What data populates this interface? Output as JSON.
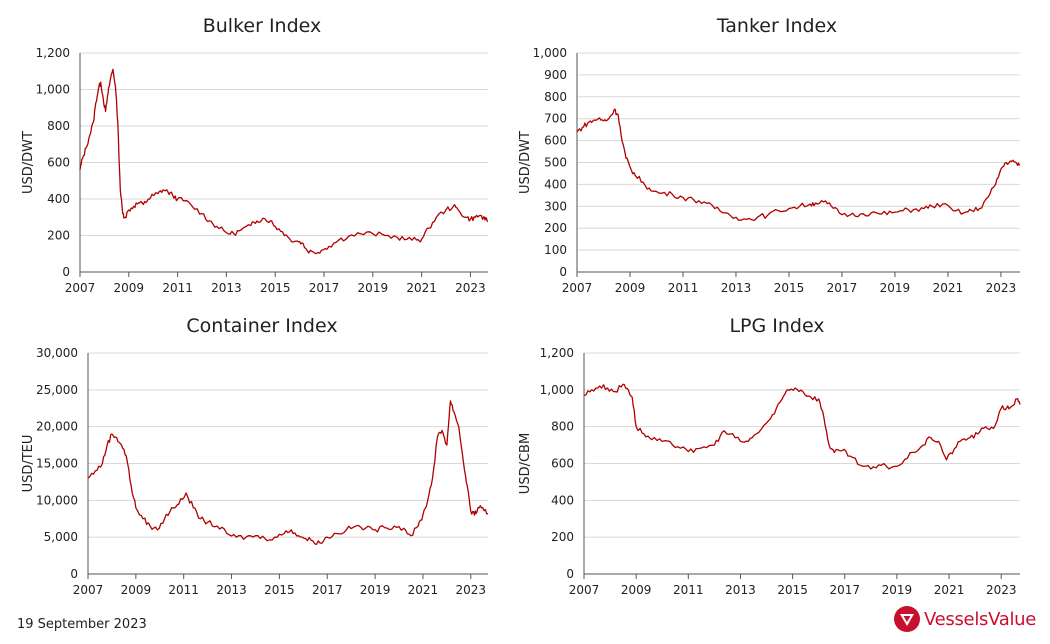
{
  "footer": {
    "date": "19 September 2023",
    "brand": "VesselsValue"
  },
  "colors": {
    "series": "#b00000",
    "brand": "#c8102e",
    "grid": "#d9d9d9"
  },
  "chart_data": [
    {
      "id": "bulker",
      "type": "line",
      "title": "Bulker Index",
      "ylabel": "USD/DWT",
      "ylim": [
        0,
        1200
      ],
      "yticks": [
        0,
        200,
        400,
        600,
        800,
        1000,
        1200
      ],
      "ytick_labels": [
        "0",
        "200",
        "400",
        "600",
        "800",
        "1,000",
        "1,200"
      ],
      "xlim": [
        2007,
        2023.72
      ],
      "xticks": [
        2007,
        2009,
        2011,
        2013,
        2015,
        2017,
        2019,
        2021,
        2023
      ],
      "x": [
        2007.0,
        2007.1,
        2007.25,
        2007.4,
        2007.55,
        2007.65,
        2007.75,
        2007.85,
        2007.95,
        2008.05,
        2008.15,
        2008.25,
        2008.35,
        2008.45,
        2008.55,
        2008.65,
        2008.75,
        2008.85,
        2009.0,
        2009.2,
        2009.4,
        2009.6,
        2009.8,
        2010.0,
        2010.2,
        2010.4,
        2010.6,
        2010.8,
        2011.0,
        2011.3,
        2011.6,
        2012.0,
        2012.3,
        2012.6,
        2013.0,
        2013.3,
        2013.6,
        2014.0,
        2014.25,
        2014.5,
        2014.8,
        2015.0,
        2015.3,
        2015.6,
        2015.9,
        2016.1,
        2016.3,
        2016.6,
        2016.9,
        2017.2,
        2017.6,
        2018.0,
        2018.5,
        2019.0,
        2019.5,
        2020.0,
        2020.4,
        2020.8,
        2021.0,
        2021.3,
        2021.6,
        2022.0,
        2022.3,
        2022.5,
        2022.8,
        2023.0,
        2023.2,
        2023.4,
        2023.6,
        2023.72
      ],
      "y": [
        560,
        620,
        680,
        750,
        820,
        930,
        1000,
        1040,
        950,
        880,
        980,
        1060,
        1110,
        1020,
        820,
        450,
        320,
        300,
        340,
        360,
        380,
        370,
        400,
        420,
        430,
        450,
        440,
        420,
        400,
        390,
        360,
        320,
        280,
        250,
        215,
        210,
        230,
        255,
        280,
        295,
        280,
        250,
        220,
        180,
        170,
        160,
        120,
        105,
        120,
        140,
        175,
        195,
        210,
        210,
        200,
        190,
        180,
        175,
        180,
        240,
        300,
        340,
        360,
        340,
        300,
        290,
        300,
        310,
        285,
        280
      ]
    },
    {
      "id": "tanker",
      "type": "line",
      "title": "Tanker Index",
      "ylabel": "USD/DWT",
      "ylim": [
        0,
        1000
      ],
      "yticks": [
        0,
        100,
        200,
        300,
        400,
        500,
        600,
        700,
        800,
        900,
        1000
      ],
      "ytick_labels": [
        "0",
        "100",
        "200",
        "300",
        "400",
        "500",
        "600",
        "700",
        "800",
        "900",
        "1,000"
      ],
      "xlim": [
        2007,
        2023.72
      ],
      "xticks": [
        2007,
        2009,
        2011,
        2013,
        2015,
        2017,
        2019,
        2021,
        2023
      ],
      "x": [
        2007.0,
        2007.2,
        2007.4,
        2007.6,
        2007.8,
        2008.0,
        2008.2,
        2008.4,
        2008.55,
        2008.7,
        2008.85,
        2009.0,
        2009.2,
        2009.5,
        2009.8,
        2010.2,
        2010.6,
        2011.0,
        2011.4,
        2011.8,
        2012.2,
        2012.6,
        2013.0,
        2013.4,
        2013.8,
        2014.2,
        2014.6,
        2015.0,
        2015.4,
        2015.8,
        2016.0,
        2016.3,
        2016.6,
        2016.9,
        2017.3,
        2017.7,
        2018.1,
        2018.5,
        2018.9,
        2019.3,
        2019.7,
        2020.1,
        2020.4,
        2020.8,
        2021.2,
        2021.6,
        2021.9,
        2022.2,
        2022.5,
        2022.8,
        2023.0,
        2023.2,
        2023.4,
        2023.6,
        2023.72
      ],
      "y": [
        640,
        660,
        680,
        690,
        700,
        690,
        700,
        740,
        720,
        600,
        520,
        480,
        440,
        410,
        370,
        360,
        355,
        340,
        330,
        320,
        290,
        270,
        250,
        240,
        250,
        260,
        280,
        290,
        300,
        310,
        315,
        320,
        300,
        270,
        260,
        265,
        270,
        265,
        270,
        280,
        285,
        290,
        300,
        310,
        280,
        270,
        280,
        290,
        340,
        400,
        470,
        500,
        505,
        495,
        490
      ]
    },
    {
      "id": "container",
      "type": "line",
      "title": "Container Index",
      "ylabel": "USD/TEU",
      "ylim": [
        0,
        30000
      ],
      "yticks": [
        0,
        5000,
        10000,
        15000,
        20000,
        25000,
        30000
      ],
      "ytick_labels": [
        "0",
        "5,000",
        "10,000",
        "15,000",
        "20,000",
        "25,000",
        "30,000"
      ],
      "xlim": [
        2007,
        2023.72
      ],
      "xticks": [
        2007,
        2009,
        2011,
        2013,
        2015,
        2017,
        2019,
        2021,
        2023
      ],
      "x": [
        2007.0,
        2007.3,
        2007.6,
        2007.8,
        2008.0,
        2008.2,
        2008.4,
        2008.6,
        2008.8,
        2009.0,
        2009.3,
        2009.6,
        2009.9,
        2010.2,
        2010.5,
        2010.8,
        2011.1,
        2011.4,
        2011.7,
        2012.0,
        2012.4,
        2012.8,
        2013.2,
        2013.6,
        2014.0,
        2014.4,
        2014.8,
        2015.2,
        2015.5,
        2015.8,
        2016.1,
        2016.4,
        2016.7,
        2017.0,
        2017.4,
        2017.8,
        2018.2,
        2018.6,
        2019.0,
        2019.4,
        2019.8,
        2020.2,
        2020.5,
        2020.8,
        2021.0,
        2021.2,
        2021.4,
        2021.6,
        2021.8,
        2022.0,
        2022.15,
        2022.3,
        2022.5,
        2022.7,
        2022.85,
        2023.0,
        2023.15,
        2023.3,
        2023.5,
        2023.72
      ],
      "y": [
        13000,
        14000,
        15000,
        17500,
        19000,
        18500,
        17500,
        16000,
        12000,
        9000,
        7500,
        6500,
        6000,
        7500,
        9000,
        9500,
        11000,
        9000,
        7500,
        7000,
        6500,
        5500,
        5000,
        5000,
        5200,
        4800,
        5000,
        5500,
        6000,
        5200,
        4800,
        4500,
        4200,
        5000,
        5500,
        6000,
        6500,
        6200,
        6000,
        6300,
        6500,
        6200,
        5200,
        6500,
        8000,
        10000,
        13000,
        18500,
        19500,
        17500,
        23500,
        22000,
        20000,
        15000,
        12000,
        8500,
        8000,
        9000,
        9000,
        8200
      ]
    },
    {
      "id": "lpg",
      "type": "line",
      "title": "LPG Index",
      "ylabel": "USD/CBM",
      "ylim": [
        0,
        1200
      ],
      "yticks": [
        0,
        200,
        400,
        600,
        800,
        1000,
        1200
      ],
      "ytick_labels": [
        "0",
        "200",
        "400",
        "600",
        "800",
        "1,000",
        "1,200"
      ],
      "xlim": [
        2007,
        2023.72
      ],
      "xticks": [
        2007,
        2009,
        2011,
        2013,
        2015,
        2017,
        2019,
        2021,
        2023
      ],
      "x": [
        2007.0,
        2007.3,
        2007.6,
        2007.9,
        2008.2,
        2008.5,
        2008.7,
        2008.85,
        2009.0,
        2009.3,
        2009.6,
        2010.0,
        2010.4,
        2010.8,
        2011.2,
        2011.6,
        2012.0,
        2012.3,
        2012.6,
        2013.0,
        2013.3,
        2013.6,
        2014.0,
        2014.3,
        2014.6,
        2014.8,
        2015.1,
        2015.4,
        2015.7,
        2016.0,
        2016.2,
        2016.4,
        2016.6,
        2016.9,
        2017.2,
        2017.6,
        2018.0,
        2018.4,
        2018.8,
        2019.2,
        2019.6,
        2020.0,
        2020.3,
        2020.6,
        2020.9,
        2021.2,
        2021.5,
        2021.8,
        2022.1,
        2022.4,
        2022.7,
        2023.0,
        2023.2,
        2023.4,
        2023.6,
        2023.72
      ],
      "y": [
        970,
        1000,
        1020,
        1010,
        990,
        1030,
        1000,
        960,
        800,
        760,
        730,
        720,
        700,
        690,
        660,
        690,
        700,
        770,
        760,
        720,
        720,
        760,
        820,
        870,
        950,
        1000,
        1010,
        990,
        960,
        950,
        850,
        700,
        660,
        670,
        640,
        590,
        570,
        590,
        580,
        600,
        660,
        700,
        740,
        720,
        620,
        680,
        730,
        740,
        760,
        800,
        790,
        900,
        900,
        910,
        950,
        920
      ]
    }
  ]
}
